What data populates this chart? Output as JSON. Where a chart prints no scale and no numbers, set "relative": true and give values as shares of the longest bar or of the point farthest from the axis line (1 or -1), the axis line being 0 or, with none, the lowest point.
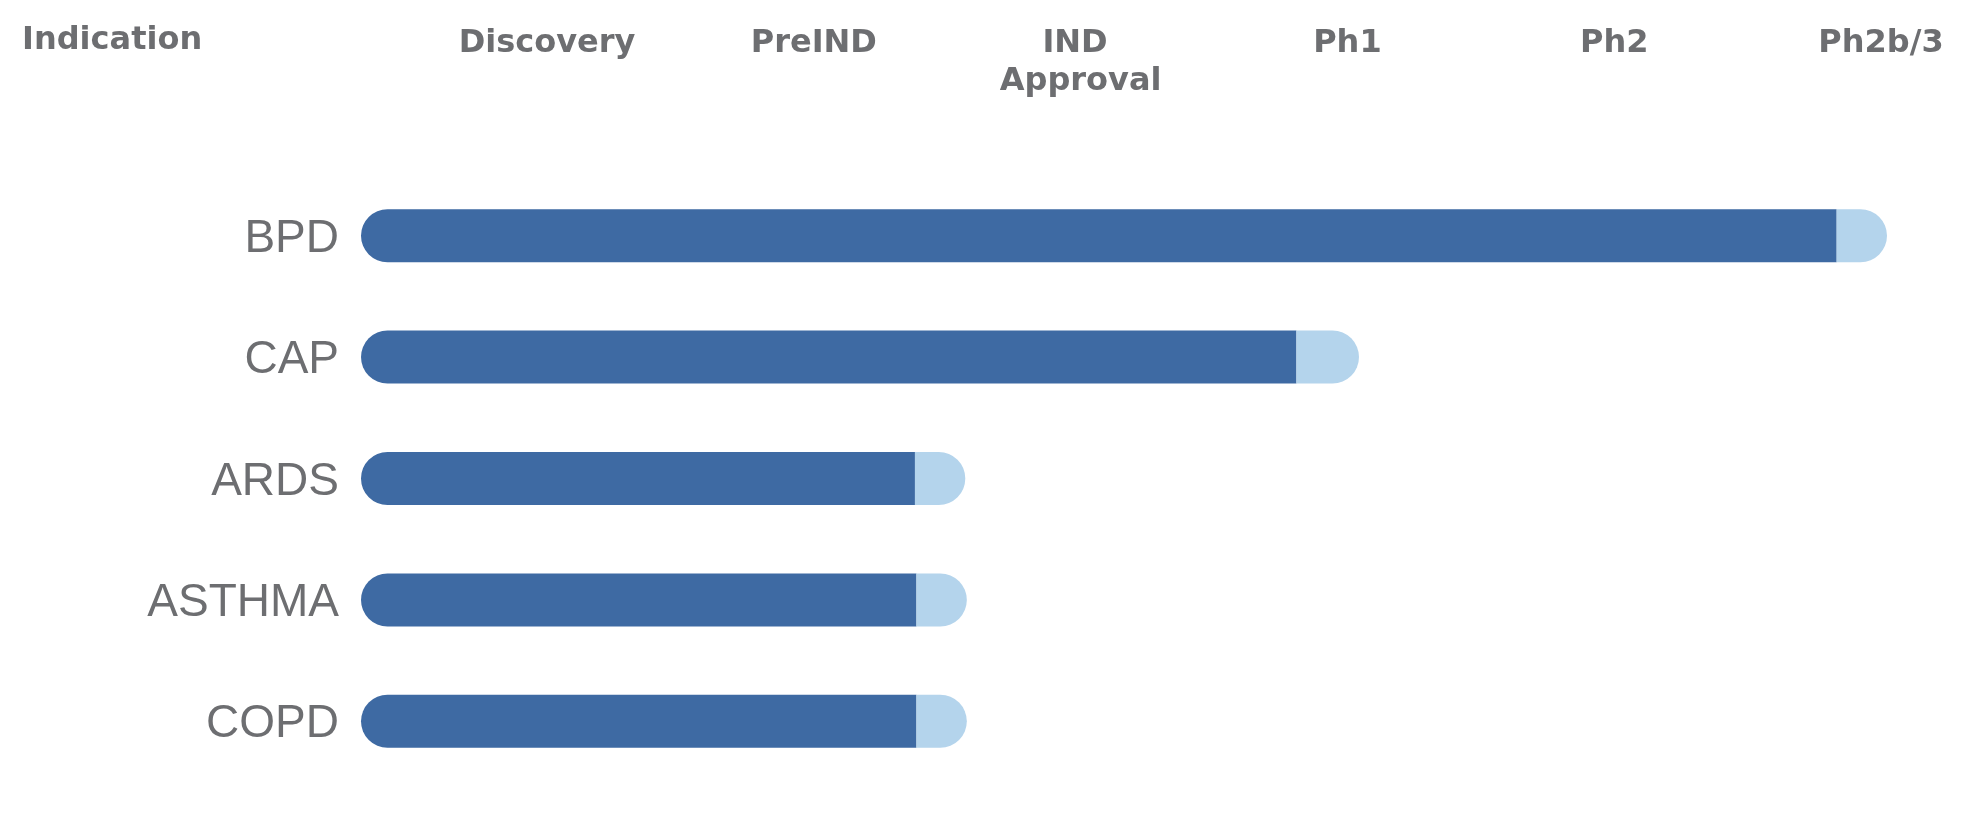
{
  "chart_data": {
    "type": "bar",
    "orientation": "horizontal",
    "stacked": true,
    "relative": true,
    "ylabel": "Indication",
    "categories": [
      "BPD",
      "CAP",
      "ARDS",
      "ASTHMA",
      "COPD"
    ],
    "series": [
      {
        "color": "#3e6aa3",
        "values": [
          0.967,
          0.613,
          0.363,
          0.364,
          0.364
        ]
      },
      {
        "color": "#b4d4ec",
        "values": [
          0.033,
          0.041,
          0.033,
          0.033,
          0.033
        ]
      }
    ],
    "annotations": [
      "Discovery",
      "PreIND",
      "IND Approval",
      "Ph1",
      "Ph2",
      "Ph2b/3"
    ]
  }
}
